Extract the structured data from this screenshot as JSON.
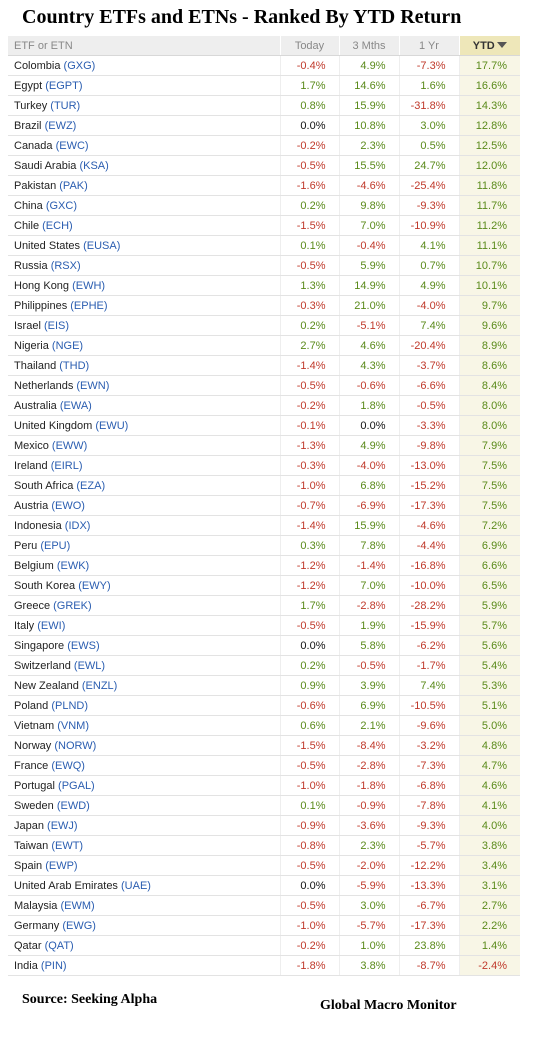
{
  "header": {
    "title": "Country ETFs and ETNs - Ranked By YTD Return",
    "columns": [
      "ETF or ETN",
      "Today",
      "3 Mths",
      "1 Yr",
      "YTD"
    ]
  },
  "footer": {
    "source": "Source:  Seeking Alpha",
    "credit": "Global Macro Monitor"
  },
  "chart_data": {
    "type": "table",
    "title": "Country ETFs and ETNs - Ranked By YTD Return",
    "sorted_by": "YTD",
    "sort_direction": "descending",
    "columns": [
      "ETF or ETN",
      "Today",
      "3 Mths",
      "1 Yr",
      "YTD"
    ],
    "rows": [
      {
        "country": "Colombia",
        "ticker": "(GXG)",
        "today": "-0.4%",
        "m3": "4.9%",
        "yr1": "-7.3%",
        "ytd": "17.7%"
      },
      {
        "country": "Egypt",
        "ticker": "(EGPT)",
        "today": "1.7%",
        "m3": "14.6%",
        "yr1": "1.6%",
        "ytd": "16.6%"
      },
      {
        "country": "Turkey",
        "ticker": "(TUR)",
        "today": "0.8%",
        "m3": "15.9%",
        "yr1": "-31.8%",
        "ytd": "14.3%"
      },
      {
        "country": "Brazil",
        "ticker": "(EWZ)",
        "today": "0.0%",
        "m3": "10.8%",
        "yr1": "3.0%",
        "ytd": "12.8%"
      },
      {
        "country": "Canada",
        "ticker": "(EWC)",
        "today": "-0.2%",
        "m3": "2.3%",
        "yr1": "0.5%",
        "ytd": "12.5%"
      },
      {
        "country": "Saudi Arabia",
        "ticker": "(KSA)",
        "today": "-0.5%",
        "m3": "15.5%",
        "yr1": "24.7%",
        "ytd": "12.0%"
      },
      {
        "country": "Pakistan",
        "ticker": "(PAK)",
        "today": "-1.6%",
        "m3": "-4.6%",
        "yr1": "-25.4%",
        "ytd": "11.8%"
      },
      {
        "country": "China",
        "ticker": "(GXC)",
        "today": "0.2%",
        "m3": "9.8%",
        "yr1": "-9.3%",
        "ytd": "11.7%"
      },
      {
        "country": "Chile",
        "ticker": "(ECH)",
        "today": "-1.5%",
        "m3": "7.0%",
        "yr1": "-10.9%",
        "ytd": "11.2%"
      },
      {
        "country": "United States",
        "ticker": "(EUSA)",
        "today": "0.1%",
        "m3": "-0.4%",
        "yr1": "4.1%",
        "ytd": "11.1%"
      },
      {
        "country": "Russia",
        "ticker": "(RSX)",
        "today": "-0.5%",
        "m3": "5.9%",
        "yr1": "0.7%",
        "ytd": "10.7%"
      },
      {
        "country": "Hong Kong",
        "ticker": "(EWH)",
        "today": "1.3%",
        "m3": "14.9%",
        "yr1": "4.9%",
        "ytd": "10.1%"
      },
      {
        "country": "Philippines",
        "ticker": "(EPHE)",
        "today": "-0.3%",
        "m3": "21.0%",
        "yr1": "-4.0%",
        "ytd": "9.7%"
      },
      {
        "country": "Israel",
        "ticker": "(EIS)",
        "today": "0.2%",
        "m3": "-5.1%",
        "yr1": "7.4%",
        "ytd": "9.6%"
      },
      {
        "country": "Nigeria",
        "ticker": "(NGE)",
        "today": "2.7%",
        "m3": "4.6%",
        "yr1": "-20.4%",
        "ytd": "8.9%"
      },
      {
        "country": "Thailand",
        "ticker": "(THD)",
        "today": "-1.4%",
        "m3": "4.3%",
        "yr1": "-3.7%",
        "ytd": "8.6%"
      },
      {
        "country": "Netherlands",
        "ticker": "(EWN)",
        "today": "-0.5%",
        "m3": "-0.6%",
        "yr1": "-6.6%",
        "ytd": "8.4%"
      },
      {
        "country": "Australia",
        "ticker": "(EWA)",
        "today": "-0.2%",
        "m3": "1.8%",
        "yr1": "-0.5%",
        "ytd": "8.0%"
      },
      {
        "country": "United Kingdom",
        "ticker": "(EWU)",
        "today": "-0.1%",
        "m3": "0.0%",
        "yr1": "-3.3%",
        "ytd": "8.0%"
      },
      {
        "country": "Mexico",
        "ticker": "(EWW)",
        "today": "-1.3%",
        "m3": "4.9%",
        "yr1": "-9.8%",
        "ytd": "7.9%"
      },
      {
        "country": "Ireland",
        "ticker": "(EIRL)",
        "today": "-0.3%",
        "m3": "-4.0%",
        "yr1": "-13.0%",
        "ytd": "7.5%"
      },
      {
        "country": "South Africa",
        "ticker": "(EZA)",
        "today": "-1.0%",
        "m3": "6.8%",
        "yr1": "-15.2%",
        "ytd": "7.5%"
      },
      {
        "country": "Austria",
        "ticker": "(EWO)",
        "today": "-0.7%",
        "m3": "-6.9%",
        "yr1": "-17.3%",
        "ytd": "7.5%"
      },
      {
        "country": "Indonesia",
        "ticker": "(IDX)",
        "today": "-1.4%",
        "m3": "15.9%",
        "yr1": "-4.6%",
        "ytd": "7.2%"
      },
      {
        "country": "Peru",
        "ticker": "(EPU)",
        "today": "0.3%",
        "m3": "7.8%",
        "yr1": "-4.4%",
        "ytd": "6.9%"
      },
      {
        "country": "Belgium",
        "ticker": "(EWK)",
        "today": "-1.2%",
        "m3": "-1.4%",
        "yr1": "-16.8%",
        "ytd": "6.6%"
      },
      {
        "country": "South Korea",
        "ticker": "(EWY)",
        "today": "-1.2%",
        "m3": "7.0%",
        "yr1": "-10.0%",
        "ytd": "6.5%"
      },
      {
        "country": "Greece",
        "ticker": "(GREK)",
        "today": "1.7%",
        "m3": "-2.8%",
        "yr1": "-28.2%",
        "ytd": "5.9%"
      },
      {
        "country": "Italy",
        "ticker": "(EWI)",
        "today": "-0.5%",
        "m3": "1.9%",
        "yr1": "-15.9%",
        "ytd": "5.7%"
      },
      {
        "country": "Singapore",
        "ticker": "(EWS)",
        "today": "0.0%",
        "m3": "5.8%",
        "yr1": "-6.2%",
        "ytd": "5.6%"
      },
      {
        "country": "Switzerland",
        "ticker": "(EWL)",
        "today": "0.2%",
        "m3": "-0.5%",
        "yr1": "-1.7%",
        "ytd": "5.4%"
      },
      {
        "country": "New Zealand",
        "ticker": "(ENZL)",
        "today": "0.9%",
        "m3": "3.9%",
        "yr1": "7.4%",
        "ytd": "5.3%"
      },
      {
        "country": "Poland",
        "ticker": "(PLND)",
        "today": "-0.6%",
        "m3": "6.9%",
        "yr1": "-10.5%",
        "ytd": "5.1%"
      },
      {
        "country": "Vietnam",
        "ticker": "(VNM)",
        "today": "0.6%",
        "m3": "2.1%",
        "yr1": "-9.6%",
        "ytd": "5.0%"
      },
      {
        "country": "Norway",
        "ticker": "(NORW)",
        "today": "-1.5%",
        "m3": "-8.4%",
        "yr1": "-3.2%",
        "ytd": "4.8%"
      },
      {
        "country": "France",
        "ticker": "(EWQ)",
        "today": "-0.5%",
        "m3": "-2.8%",
        "yr1": "-7.3%",
        "ytd": "4.7%"
      },
      {
        "country": "Portugal",
        "ticker": "(PGAL)",
        "today": "-1.0%",
        "m3": "-1.8%",
        "yr1": "-6.8%",
        "ytd": "4.6%"
      },
      {
        "country": "Sweden",
        "ticker": "(EWD)",
        "today": "0.1%",
        "m3": "-0.9%",
        "yr1": "-7.8%",
        "ytd": "4.1%"
      },
      {
        "country": "Japan",
        "ticker": "(EWJ)",
        "today": "-0.9%",
        "m3": "-3.6%",
        "yr1": "-9.3%",
        "ytd": "4.0%"
      },
      {
        "country": "Taiwan",
        "ticker": "(EWT)",
        "today": "-0.8%",
        "m3": "2.3%",
        "yr1": "-5.7%",
        "ytd": "3.8%"
      },
      {
        "country": "Spain",
        "ticker": "(EWP)",
        "today": "-0.5%",
        "m3": "-2.0%",
        "yr1": "-12.2%",
        "ytd": "3.4%"
      },
      {
        "country": "United Arab Emirates",
        "ticker": "(UAE)",
        "today": "0.0%",
        "m3": "-5.9%",
        "yr1": "-13.3%",
        "ytd": "3.1%"
      },
      {
        "country": "Malaysia",
        "ticker": "(EWM)",
        "today": "-0.5%",
        "m3": "3.0%",
        "yr1": "-6.7%",
        "ytd": "2.7%"
      },
      {
        "country": "Germany",
        "ticker": "(EWG)",
        "today": "-1.0%",
        "m3": "-5.7%",
        "yr1": "-17.3%",
        "ytd": "2.2%"
      },
      {
        "country": "Qatar",
        "ticker": "(QAT)",
        "today": "-0.2%",
        "m3": "1.0%",
        "yr1": "23.8%",
        "ytd": "1.4%"
      },
      {
        "country": "India",
        "ticker": "(PIN)",
        "today": "-1.8%",
        "m3": "3.8%",
        "yr1": "-8.7%",
        "ytd": "-2.4%"
      }
    ]
  }
}
